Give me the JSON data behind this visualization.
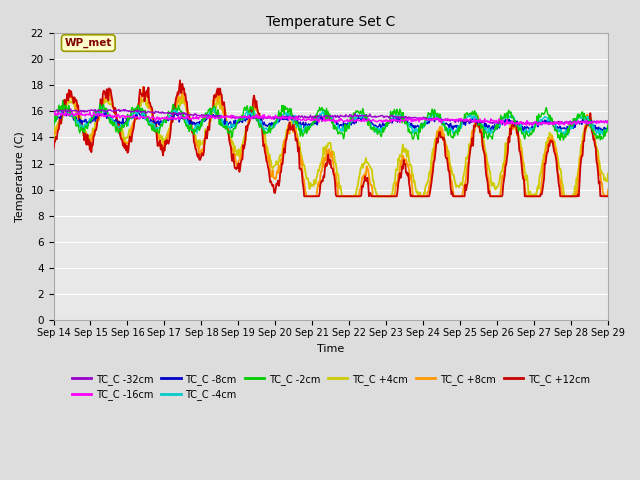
{
  "title": "Temperature Set C",
  "xlabel": "Time",
  "ylabel": "Temperature (C)",
  "ylim": [
    0,
    22
  ],
  "yticks": [
    0,
    2,
    4,
    6,
    8,
    10,
    12,
    14,
    16,
    18,
    20,
    22
  ],
  "xtick_labels": [
    "Sep 14",
    "Sep 15",
    "Sep 16",
    "Sep 17",
    "Sep 18",
    "Sep 19",
    "Sep 20",
    "Sep 21",
    "Sep 22",
    "Sep 23",
    "Sep 24",
    "Sep 25",
    "Sep 26",
    "Sep 27",
    "Sep 28",
    "Sep 29"
  ],
  "series_colors": {
    "TC_C -32cm": "#9900cc",
    "TC_C -16cm": "#ff00ff",
    "TC_C -8cm": "#0000cc",
    "TC_C -4cm": "#00cccc",
    "TC_C -2cm": "#00cc00",
    "TC_C +4cm": "#cccc00",
    "TC_C +8cm": "#ff9900",
    "TC_C +12cm": "#cc0000"
  },
  "legend_order": [
    "TC_C -32cm",
    "TC_C -16cm",
    "TC_C -8cm",
    "TC_C -4cm",
    "TC_C -2cm",
    "TC_C +4cm",
    "TC_C +8cm",
    "TC_C +12cm"
  ],
  "wp_met_box_color": "#ffffcc",
  "wp_met_text_color": "#800000",
  "wp_met_edge_color": "#999900",
  "background_color": "#dddddd",
  "plot_bg_color": "#e8e8e8",
  "grid_color": "#ffffff",
  "n_days": 15,
  "pts_per_day": 48
}
